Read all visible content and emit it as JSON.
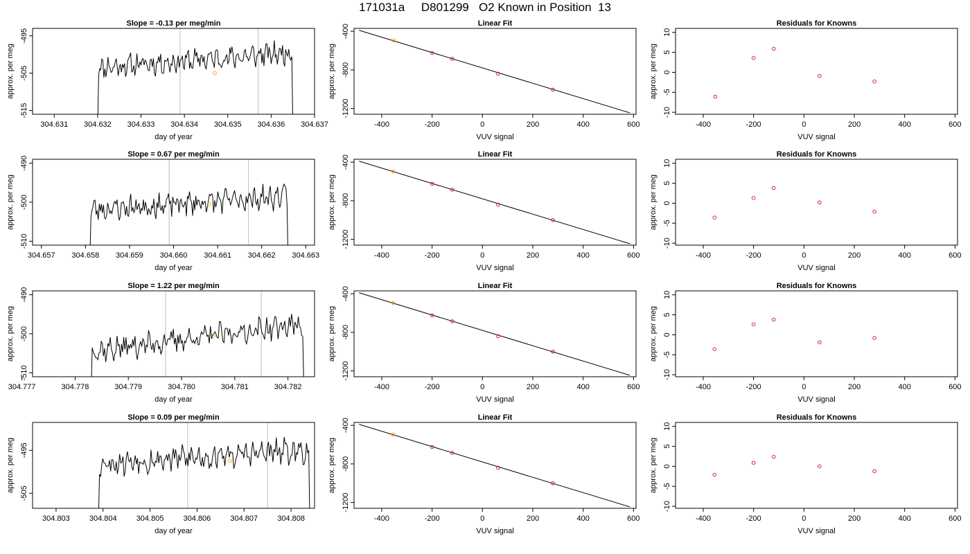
{
  "figure": {
    "title": "171031a     D801299   O2 Known in Position  13"
  },
  "chart_data": [
    {
      "type": "line",
      "panel": "time-series",
      "row": 1,
      "title": "Slope =  -0.13  per meg/min",
      "xlabel": "day of year",
      "ylabel": "approx. per meg",
      "xlim": [
        304.6305,
        304.637
      ],
      "ylim": [
        -516,
        -493
      ],
      "xticks": [
        "304.631",
        "304.632",
        "304.633",
        "304.634",
        "304.635",
        "304.636",
        "304.637"
      ],
      "yticks": [
        "-495",
        "-505",
        "-515"
      ],
      "x_start": 304.632,
      "x_end": 304.6365,
      "baseline": -503.5,
      "rise": 4,
      "seed": 11,
      "vlines": [
        304.6339,
        304.6357
      ],
      "marker": {
        "x": 304.6347,
        "y": -505
      },
      "marker_color": "#ffa500"
    },
    {
      "type": "scatter",
      "panel": "fit",
      "row": 1,
      "title": "Linear Fit",
      "xlabel": "VUV signal",
      "ylabel": "approx. per meg",
      "xlim": [
        -510,
        610
      ],
      "ylim": [
        -1260,
        -370
      ],
      "xticks": [
        "-400",
        "-200",
        "0",
        "200",
        "400",
        "600"
      ],
      "yticks": [
        "-400",
        "-800",
        "-1200"
      ],
      "x": [
        -352,
        -200,
        -120,
        62,
        280
      ],
      "y": [
        -495,
        -625,
        -685,
        -840,
        -1005
      ],
      "line": [
        [
          -490,
          -390
        ],
        [
          585,
          -1245
        ]
      ]
    },
    {
      "type": "scatter",
      "panel": "residuals",
      "row": 1,
      "title": "Residuals for Knowns",
      "xlabel": "VUV signal",
      "ylabel": "approx. per meg",
      "xlim": [
        -510,
        610
      ],
      "ylim": [
        -10.5,
        11
      ],
      "xticks": [
        "-400",
        "-200",
        "0",
        "200",
        "400",
        "600"
      ],
      "yticks": [
        "10",
        "5",
        "0",
        "-5",
        "-10"
      ],
      "x": [
        -352,
        -200,
        -120,
        62,
        280
      ],
      "y": [
        -6.1,
        3.6,
        5.9,
        -0.9,
        -2.3
      ]
    },
    {
      "type": "line",
      "panel": "time-series",
      "row": 2,
      "title": "Slope =  0.67  per meg/min",
      "xlabel": "day of year",
      "ylabel": "approx. per meg",
      "xlim": [
        304.6568,
        304.6632
      ],
      "ylim": [
        -511,
        -489
      ],
      "xticks": [
        "304.657",
        "304.658",
        "304.659",
        "304.660",
        "304.661",
        "304.662",
        "304.663"
      ],
      "yticks": [
        "-490",
        "-500",
        "-510"
      ],
      "x_start": 304.6581,
      "x_end": 304.6626,
      "baseline": -502,
      "rise": 3.5,
      "seed": 23,
      "vlines": [
        304.6599,
        304.6617
      ],
      "marker": {
        "x": 304.6608,
        "y": -500.5
      },
      "marker_color": "#ffa500"
    },
    {
      "type": "scatter",
      "panel": "fit",
      "row": 2,
      "title": "Linear Fit",
      "xlabel": "VUV signal",
      "ylabel": "approx. per meg",
      "xlim": [
        -510,
        610
      ],
      "ylim": [
        -1260,
        -370
      ],
      "xticks": [
        "-400",
        "-200",
        "0",
        "200",
        "400",
        "600"
      ],
      "yticks": [
        "-400",
        "-800",
        "-1200"
      ],
      "x": [
        -355,
        -200,
        -120,
        62,
        280
      ],
      "y": [
        -495,
        -625,
        -685,
        -840,
        -1000
      ],
      "line": [
        [
          -490,
          -390
        ],
        [
          585,
          -1245
        ]
      ]
    },
    {
      "type": "scatter",
      "panel": "residuals",
      "row": 2,
      "title": "Residuals for Knowns",
      "xlabel": "VUV signal",
      "ylabel": "approx. per meg",
      "xlim": [
        -510,
        610
      ],
      "ylim": [
        -10.5,
        11
      ],
      "xticks": [
        "-400",
        "-200",
        "0",
        "200",
        "400",
        "600"
      ],
      "yticks": [
        "10",
        "5",
        "0",
        "-5",
        "-10"
      ],
      "x": [
        -355,
        -200,
        -120,
        62,
        280
      ],
      "y": [
        -3.6,
        1.3,
        3.8,
        0.2,
        -2.1
      ]
    },
    {
      "type": "line",
      "panel": "time-series",
      "row": 3,
      "title": "Slope =  1.22  per meg/min",
      "xlabel": "day of year",
      "ylabel": "approx. per meg",
      "xlim": [
        304.7772,
        304.7825
      ],
      "ylim": [
        -511,
        -489
      ],
      "xticks": [
        "304.777",
        "304.778",
        "304.779",
        "304.780",
        "304.781",
        "304.782"
      ],
      "yticks": [
        "-490",
        "-500",
        "-510"
      ],
      "x_start": 304.7783,
      "x_end": 304.7823,
      "baseline": -504.5,
      "rise": 7,
      "seed": 37,
      "vlines": [
        304.7797,
        304.7815
      ],
      "marker": {
        "x": 304.7806,
        "y": -500.5
      },
      "marker_color": "#ffa500"
    },
    {
      "type": "scatter",
      "panel": "fit",
      "row": 3,
      "title": "Linear Fit",
      "xlabel": "VUV signal",
      "ylabel": "approx. per meg",
      "xlim": [
        -510,
        610
      ],
      "ylim": [
        -1260,
        -370
      ],
      "xticks": [
        "-400",
        "-200",
        "0",
        "200",
        "400",
        "600"
      ],
      "yticks": [
        "-400",
        "-800",
        "-1200"
      ],
      "x": [
        -355,
        -200,
        -120,
        62,
        280
      ],
      "y": [
        -495,
        -625,
        -685,
        -840,
        -1000
      ],
      "line": [
        [
          -490,
          -390
        ],
        [
          585,
          -1245
        ]
      ]
    },
    {
      "type": "scatter",
      "panel": "residuals",
      "row": 3,
      "title": "Residuals for Knowns",
      "xlabel": "VUV signal",
      "ylabel": "approx. per meg",
      "xlim": [
        -510,
        610
      ],
      "ylim": [
        -10.5,
        11
      ],
      "xticks": [
        "-400",
        "-200",
        "0",
        "200",
        "400",
        "600"
      ],
      "yticks": [
        "10",
        "5",
        "0",
        "-5",
        "-10"
      ],
      "x": [
        -355,
        -200,
        -120,
        62,
        280
      ],
      "y": [
        -3.6,
        2.6,
        3.8,
        -1.9,
        -0.8
      ]
    },
    {
      "type": "line",
      "panel": "time-series",
      "row": 4,
      "title": "Slope =  0.09  per meg/min",
      "xlabel": "day of year",
      "ylabel": "approx. per meg",
      "xlim": [
        304.8025,
        304.8085
      ],
      "ylim": [
        -508.5,
        -488.5
      ],
      "xticks": [
        "304.803",
        "304.804",
        "304.805",
        "304.806",
        "304.807",
        "304.808"
      ],
      "yticks": [
        "-495",
        "-505"
      ],
      "x_start": 304.8039,
      "x_end": 304.8084,
      "baseline": -498,
      "rise": 3,
      "seed": 53,
      "vlines": [
        304.8058,
        304.8075
      ],
      "marker": {
        "x": 304.8067,
        "y": -497.5
      },
      "marker_color": "#ffa500"
    },
    {
      "type": "scatter",
      "panel": "fit",
      "row": 4,
      "title": "Linear Fit",
      "xlabel": "VUV signal",
      "ylabel": "approx. per meg",
      "xlim": [
        -510,
        610
      ],
      "ylim": [
        -1260,
        -370
      ],
      "xticks": [
        "-400",
        "-200",
        "0",
        "200",
        "400",
        "600"
      ],
      "yticks": [
        "-400",
        "-800",
        "-1200"
      ],
      "x": [
        -355,
        -200,
        -120,
        62,
        280
      ],
      "y": [
        -495,
        -625,
        -685,
        -840,
        -1000
      ],
      "line": [
        [
          -490,
          -390
        ],
        [
          585,
          -1245
        ]
      ]
    },
    {
      "type": "scatter",
      "panel": "residuals",
      "row": 4,
      "title": "Residuals for Knowns",
      "xlabel": "VUV signal",
      "ylabel": "approx. per meg",
      "xlim": [
        -510,
        610
      ],
      "ylim": [
        -10.5,
        11
      ],
      "xticks": [
        "-400",
        "-200",
        "0",
        "200",
        "400",
        "600"
      ],
      "yticks": [
        "10",
        "5",
        "0",
        "-5",
        "-10"
      ],
      "x": [
        -355,
        -200,
        -120,
        62,
        280
      ],
      "y": [
        -2.1,
        0.9,
        2.4,
        0.0,
        -1.2
      ]
    }
  ],
  "colors": {
    "axis": "#000000",
    "line": "#000000",
    "vline": "#c8c8c8",
    "first_point": "#ffa500",
    "points": "#d62728"
  }
}
